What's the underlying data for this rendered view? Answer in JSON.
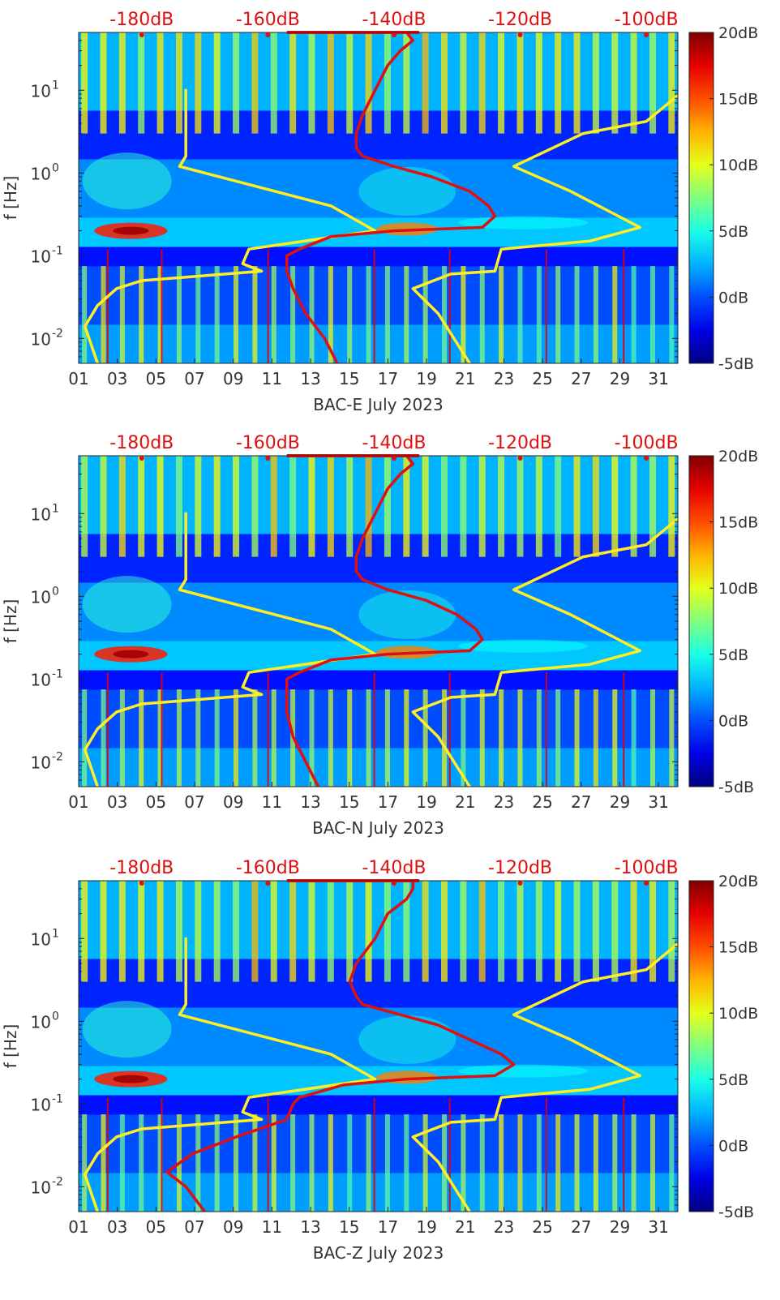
{
  "colors": {
    "noise_model_curve": "#ffee22",
    "psd_curve": "#e01010",
    "top_axis_text": "#e01010",
    "axis_text": "#333333"
  },
  "colorbar": {
    "colormap": "jet",
    "range_db": [
      -5,
      20
    ],
    "tick_labels": [
      "20dB",
      "15dB",
      "10dB",
      "5dB",
      "0dB",
      "-5dB"
    ]
  },
  "chart_data": [
    {
      "type": "heatmap",
      "xlabel": "BAC-E July 2023",
      "ylabel": "f [Hz]",
      "x_ticks": [
        "01",
        "03",
        "05",
        "07",
        "09",
        "11",
        "13",
        "15",
        "17",
        "19",
        "21",
        "23",
        "25",
        "27",
        "29",
        "31"
      ],
      "x_range_day": [
        1,
        32
      ],
      "y_scale": "log",
      "y_range_hz": [
        0.005,
        50
      ],
      "y_ticks": [
        {
          "v": 10,
          "label": "10^1"
        },
        {
          "v": 1,
          "label": "10^0"
        },
        {
          "v": 0.1,
          "label": "10^-1"
        },
        {
          "v": 0.01,
          "label": "10^-2"
        }
      ],
      "top_axis_labels": [
        "-180dB",
        "-160dB",
        "-140dB",
        "-120dB",
        "-100dB"
      ],
      "top_axis_range_db": [
        -190,
        -95
      ],
      "yellow_low": [
        [
          -173,
          10
        ],
        [
          -173,
          1.6
        ],
        [
          -174,
          1.2
        ],
        [
          -150,
          0.4
        ],
        [
          -143,
          0.2
        ],
        [
          -163,
          0.12
        ],
        [
          -164,
          0.08
        ],
        [
          -161,
          0.065
        ],
        [
          -180,
          0.05
        ],
        [
          -184,
          0.04
        ],
        [
          -187,
          0.025
        ],
        [
          -189,
          0.014
        ],
        [
          -187,
          0.005
        ]
      ],
      "yellow_high": [
        [
          -94,
          10
        ],
        [
          -100,
          4.2
        ],
        [
          -110,
          3
        ],
        [
          -121,
          1.2
        ],
        [
          -112,
          0.6
        ],
        [
          -101,
          0.22
        ],
        [
          -109,
          0.15
        ],
        [
          -123,
          0.12
        ],
        [
          -124,
          0.065
        ],
        [
          -131,
          0.06
        ],
        [
          -137,
          0.04
        ],
        [
          -133,
          0.02
        ],
        [
          -128,
          0.005
        ]
      ],
      "red_psd": [
        [
          -138,
          50
        ],
        [
          -137,
          40
        ],
        [
          -139,
          30
        ],
        [
          -141,
          20
        ],
        [
          -143,
          10
        ],
        [
          -145,
          5
        ],
        [
          -146,
          3
        ],
        [
          -146,
          2
        ],
        [
          -145,
          1.6
        ],
        [
          -140,
          1.2
        ],
        [
          -134,
          0.9
        ],
        [
          -128,
          0.6
        ],
        [
          -125,
          0.4
        ],
        [
          -124,
          0.3
        ],
        [
          -126,
          0.22
        ],
        [
          -140,
          0.2
        ],
        [
          -150,
          0.17
        ],
        [
          -155,
          0.12
        ],
        [
          -157,
          0.1
        ],
        [
          -157,
          0.065
        ],
        [
          -156,
          0.04
        ],
        [
          -154,
          0.02
        ],
        [
          -151,
          0.01
        ],
        [
          -149,
          0.005
        ]
      ]
    },
    {
      "type": "heatmap",
      "xlabel": "BAC-N July 2023",
      "ylabel": "f [Hz]",
      "x_ticks": [
        "01",
        "03",
        "05",
        "07",
        "09",
        "11",
        "13",
        "15",
        "17",
        "19",
        "21",
        "23",
        "25",
        "27",
        "29",
        "31"
      ],
      "x_range_day": [
        1,
        32
      ],
      "y_scale": "log",
      "y_range_hz": [
        0.005,
        50
      ],
      "y_ticks": [
        {
          "v": 10,
          "label": "10^1"
        },
        {
          "v": 1,
          "label": "10^0"
        },
        {
          "v": 0.1,
          "label": "10^-1"
        },
        {
          "v": 0.01,
          "label": "10^-2"
        }
      ],
      "top_axis_labels": [
        "-180dB",
        "-160dB",
        "-140dB",
        "-120dB",
        "-100dB"
      ],
      "top_axis_range_db": [
        -190,
        -95
      ],
      "yellow_low": [
        [
          -173,
          10
        ],
        [
          -173,
          1.6
        ],
        [
          -174,
          1.2
        ],
        [
          -150,
          0.4
        ],
        [
          -143,
          0.2
        ],
        [
          -163,
          0.12
        ],
        [
          -164,
          0.08
        ],
        [
          -161,
          0.065
        ],
        [
          -180,
          0.05
        ],
        [
          -184,
          0.04
        ],
        [
          -187,
          0.025
        ],
        [
          -189,
          0.014
        ],
        [
          -187,
          0.005
        ]
      ],
      "yellow_high": [
        [
          -94,
          10
        ],
        [
          -100,
          4.2
        ],
        [
          -110,
          3
        ],
        [
          -121,
          1.2
        ],
        [
          -112,
          0.6
        ],
        [
          -101,
          0.22
        ],
        [
          -109,
          0.15
        ],
        [
          -123,
          0.12
        ],
        [
          -124,
          0.065
        ],
        [
          -131,
          0.06
        ],
        [
          -137,
          0.04
        ],
        [
          -133,
          0.02
        ],
        [
          -128,
          0.005
        ]
      ],
      "red_psd": [
        [
          -138,
          50
        ],
        [
          -137,
          40
        ],
        [
          -139,
          30
        ],
        [
          -141,
          20
        ],
        [
          -143,
          10
        ],
        [
          -145,
          5
        ],
        [
          -146,
          3
        ],
        [
          -146,
          2
        ],
        [
          -145,
          1.6
        ],
        [
          -141,
          1.2
        ],
        [
          -135,
          0.9
        ],
        [
          -130,
          0.6
        ],
        [
          -127,
          0.4
        ],
        [
          -126,
          0.3
        ],
        [
          -128,
          0.22
        ],
        [
          -141,
          0.2
        ],
        [
          -150,
          0.17
        ],
        [
          -155,
          0.12
        ],
        [
          -157,
          0.1
        ],
        [
          -157,
          0.065
        ],
        [
          -157,
          0.04
        ],
        [
          -156,
          0.02
        ],
        [
          -154,
          0.01
        ],
        [
          -152,
          0.005
        ]
      ]
    },
    {
      "type": "heatmap",
      "xlabel": "BAC-Z July 2023",
      "ylabel": "f [Hz]",
      "x_ticks": [
        "01",
        "03",
        "05",
        "07",
        "09",
        "11",
        "13",
        "15",
        "17",
        "19",
        "21",
        "23",
        "25",
        "27",
        "29",
        "31"
      ],
      "x_range_day": [
        1,
        32
      ],
      "y_scale": "log",
      "y_range_hz": [
        0.005,
        50
      ],
      "y_ticks": [
        {
          "v": 10,
          "label": "10^1"
        },
        {
          "v": 1,
          "label": "10^0"
        },
        {
          "v": 0.1,
          "label": "10^-1"
        },
        {
          "v": 0.01,
          "label": "10^-2"
        }
      ],
      "top_axis_labels": [
        "-180dB",
        "-160dB",
        "-140dB",
        "-120dB",
        "-100dB"
      ],
      "top_axis_range_db": [
        -190,
        -95
      ],
      "yellow_low": [
        [
          -173,
          10
        ],
        [
          -173,
          1.6
        ],
        [
          -174,
          1.2
        ],
        [
          -150,
          0.4
        ],
        [
          -143,
          0.2
        ],
        [
          -163,
          0.12
        ],
        [
          -164,
          0.08
        ],
        [
          -161,
          0.065
        ],
        [
          -180,
          0.05
        ],
        [
          -184,
          0.04
        ],
        [
          -187,
          0.025
        ],
        [
          -189,
          0.014
        ],
        [
          -187,
          0.005
        ]
      ],
      "yellow_high": [
        [
          -94,
          10
        ],
        [
          -100,
          4.2
        ],
        [
          -110,
          3
        ],
        [
          -121,
          1.2
        ],
        [
          -112,
          0.6
        ],
        [
          -101,
          0.22
        ],
        [
          -109,
          0.15
        ],
        [
          -123,
          0.12
        ],
        [
          -124,
          0.065
        ],
        [
          -131,
          0.06
        ],
        [
          -137,
          0.04
        ],
        [
          -133,
          0.02
        ],
        [
          -128,
          0.005
        ]
      ],
      "red_psd": [
        [
          -137,
          50
        ],
        [
          -137,
          40
        ],
        [
          -138,
          30
        ],
        [
          -141,
          20
        ],
        [
          -143,
          10
        ],
        [
          -146,
          5
        ],
        [
          -147,
          3
        ],
        [
          -146,
          2
        ],
        [
          -145,
          1.6
        ],
        [
          -139,
          1.2
        ],
        [
          -133,
          0.9
        ],
        [
          -128,
          0.6
        ],
        [
          -123,
          0.4
        ],
        [
          -121,
          0.3
        ],
        [
          -124,
          0.22
        ],
        [
          -138,
          0.2
        ],
        [
          -148,
          0.17
        ],
        [
          -155,
          0.12
        ],
        [
          -156,
          0.1
        ],
        [
          -157,
          0.065
        ],
        [
          -165,
          0.04
        ],
        [
          -172,
          0.025
        ],
        [
          -176,
          0.015
        ],
        [
          -173,
          0.01
        ],
        [
          -170,
          0.005
        ]
      ]
    }
  ]
}
